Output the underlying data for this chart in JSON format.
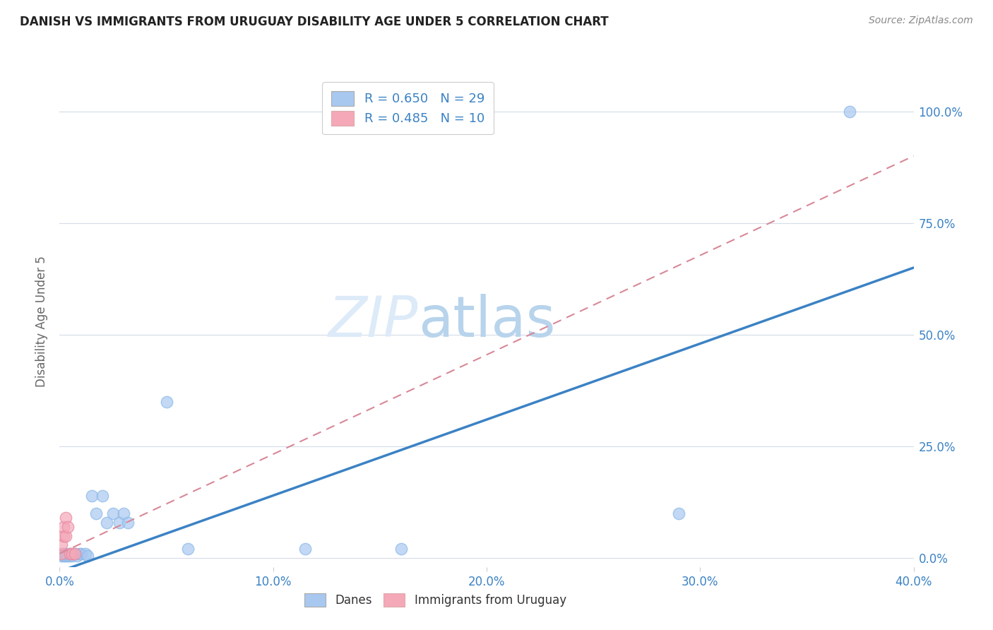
{
  "title": "DANISH VS IMMIGRANTS FROM URUGUAY DISABILITY AGE UNDER 5 CORRELATION CHART",
  "source": "Source: ZipAtlas.com",
  "ylabel": "Disability Age Under 5",
  "xlim": [
    0.0,
    0.4
  ],
  "ylim": [
    -0.02,
    1.08
  ],
  "xticks": [
    0.0,
    0.1,
    0.2,
    0.3,
    0.4
  ],
  "xtick_labels": [
    "0.0%",
    "10.0%",
    "20.0%",
    "30.0%",
    "40.0%"
  ],
  "ytick_labels_right": [
    "0.0%",
    "25.0%",
    "50.0%",
    "75.0%",
    "100.0%"
  ],
  "yticks_right": [
    0.0,
    0.25,
    0.5,
    0.75,
    1.0
  ],
  "danes_R": 0.65,
  "danes_N": 29,
  "immigrants_R": 0.485,
  "immigrants_N": 10,
  "danes_color": "#a8c8f0",
  "danes_line_color": "#3b82c4",
  "immigrants_color": "#f4a8b8",
  "immigrants_line_color": "#d88898",
  "legend_text_color": "#3b82c4",
  "background_color": "#ffffff",
  "grid_color": "#d4dce8",
  "watermark_color": "#ddeaf8",
  "danes_x": [
    0.001,
    0.002,
    0.002,
    0.003,
    0.003,
    0.004,
    0.005,
    0.005,
    0.006,
    0.007,
    0.008,
    0.009,
    0.01,
    0.012,
    0.013,
    0.015,
    0.017,
    0.02,
    0.022,
    0.025,
    0.028,
    0.03,
    0.032,
    0.05,
    0.06,
    0.115,
    0.16,
    0.29,
    0.37
  ],
  "danes_y": [
    0.005,
    0.005,
    0.01,
    0.005,
    0.01,
    0.005,
    0.005,
    0.01,
    0.005,
    0.01,
    0.005,
    0.01,
    0.01,
    0.01,
    0.005,
    0.14,
    0.1,
    0.14,
    0.08,
    0.1,
    0.08,
    0.1,
    0.08,
    0.35,
    0.02,
    0.02,
    0.02,
    0.1,
    1.0
  ],
  "immigrants_x": [
    0.001,
    0.001,
    0.002,
    0.002,
    0.003,
    0.003,
    0.004,
    0.005,
    0.006,
    0.007
  ],
  "immigrants_y": [
    0.01,
    0.03,
    0.05,
    0.07,
    0.05,
    0.09,
    0.07,
    0.01,
    0.01,
    0.01
  ],
  "blue_line_x0": 0.0,
  "blue_line_y0": -0.03,
  "blue_line_x1": 0.4,
  "blue_line_y1": 0.65,
  "pink_line_x0": 0.0,
  "pink_line_y0": 0.01,
  "pink_line_x1": 0.4,
  "pink_line_y1": 0.9
}
